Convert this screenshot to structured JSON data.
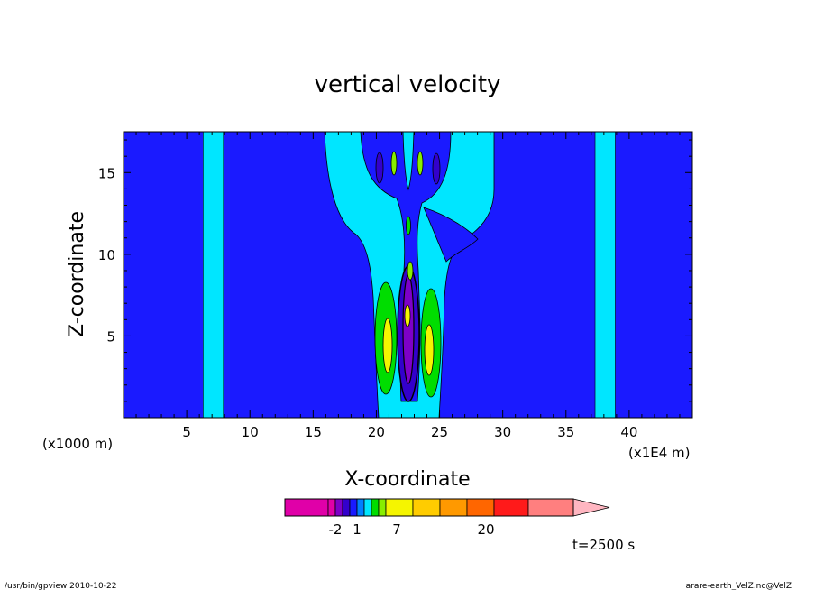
{
  "chart_data": {
    "type": "heatmap",
    "title": "vertical velocity",
    "xlabel": "X-coordinate",
    "ylabel": "Z-coordinate",
    "x_unit_left": "(x1000 m)",
    "x_unit_right": "(x1E4 m)",
    "xlim": [
      0,
      45
    ],
    "ylim": [
      0,
      17.5
    ],
    "x_ticks": [
      5,
      10,
      15,
      20,
      25,
      30,
      35,
      40
    ],
    "y_ticks": [
      5,
      10,
      15
    ],
    "background_color": "#1a1aff",
    "colorbar": {
      "colors": [
        "#e000a8",
        "#e000a8",
        "#7d00c8",
        "#3300cc",
        "#1a1aff",
        "#0080ff",
        "#00e6ff",
        "#00dd00",
        "#88ee00",
        "#f5f500",
        "#ffcc00",
        "#ff9900",
        "#ff6600",
        "#ff1a1a",
        "#ff7f7f",
        "#ffb6c1"
      ],
      "tick_labels": [
        "-2",
        "1",
        "7",
        "20"
      ]
    },
    "time_label": "t=2500 s",
    "footer_left": "/usr/bin/gpview   2010-10-22",
    "footer_right": "arare-earth_VelZ.nc@VelZ",
    "regions": [
      {
        "name": "cyan-column-left",
        "color": "#00e6ff",
        "x0": 6.3,
        "x1": 7.9,
        "y0": 0,
        "y1": 17.5
      },
      {
        "name": "cyan-column-right",
        "color": "#00e6ff",
        "x0": 37.3,
        "x1": 38.9,
        "y0": 0,
        "y1": 17.5
      }
    ]
  }
}
